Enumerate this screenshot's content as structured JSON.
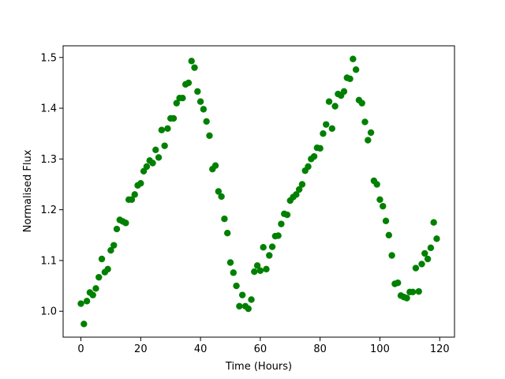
{
  "chart_data": {
    "type": "scatter",
    "x_label": "Time (Hours)",
    "y_label": "Normalised Flux",
    "series": [
      {
        "color": "#008000",
        "x": [
          0,
          1,
          2,
          3,
          4,
          5,
          6,
          7,
          8,
          9,
          10,
          11,
          12,
          13,
          14,
          15,
          16,
          17,
          18,
          19,
          20,
          21,
          22,
          23,
          24,
          25,
          26,
          27,
          28,
          29,
          30,
          31,
          32,
          33,
          34,
          35,
          36,
          37,
          38,
          39,
          40,
          41,
          42,
          43,
          44,
          45,
          46,
          47,
          48,
          49,
          50,
          51,
          52,
          53,
          54,
          55,
          56,
          57,
          58,
          59,
          60,
          61,
          62,
          63,
          64,
          65,
          66,
          67,
          68,
          69,
          70,
          71,
          72,
          73,
          74,
          75,
          76,
          77,
          78,
          79,
          80,
          81,
          82,
          83,
          84,
          85,
          86,
          87,
          88,
          89,
          90,
          91,
          92,
          93,
          94,
          95,
          96,
          97,
          98,
          99,
          100,
          101,
          102,
          103,
          104,
          105,
          106,
          107,
          108,
          109,
          110,
          111,
          112,
          113,
          114,
          115,
          116,
          117,
          118,
          119
        ],
        "values": [
          1.015,
          0.975,
          1.02,
          1.037,
          1.032,
          1.045,
          1.067,
          1.103,
          1.077,
          1.083,
          1.12,
          1.13,
          1.162,
          1.18,
          1.177,
          1.174,
          1.22,
          1.22,
          1.23,
          1.248,
          1.252,
          1.276,
          1.285,
          1.297,
          1.292,
          1.318,
          1.303,
          1.357,
          1.326,
          1.36,
          1.38,
          1.38,
          1.41,
          1.42,
          1.42,
          1.447,
          1.45,
          1.493,
          1.48,
          1.433,
          1.413,
          1.398,
          1.374,
          1.346,
          1.28,
          1.287,
          1.236,
          1.226,
          1.182,
          1.154,
          1.096,
          1.076,
          1.05,
          1.01,
          1.032,
          1.01,
          1.005,
          1.023,
          1.078,
          1.09,
          1.08,
          1.126,
          1.083,
          1.11,
          1.127,
          1.148,
          1.149,
          1.172,
          1.192,
          1.19,
          1.218,
          1.225,
          1.23,
          1.24,
          1.25,
          1.277,
          1.285,
          1.3,
          1.305,
          1.322,
          1.321,
          1.35,
          1.368,
          1.413,
          1.36,
          1.404,
          1.428,
          1.425,
          1.433,
          1.46,
          1.458,
          1.497,
          1.476,
          1.416,
          1.41,
          1.373,
          1.337,
          1.352,
          1.257,
          1.25,
          1.22,
          1.207,
          1.178,
          1.15,
          1.11,
          1.054,
          1.056,
          1.031,
          1.028,
          1.026,
          1.038,
          1.038,
          1.085,
          1.039,
          1.093,
          1.114,
          1.103,
          1.125,
          1.175,
          1.143
        ]
      }
    ],
    "xlim": [
      -5.95,
      124.95
    ],
    "ylim": [
      0.949,
      1.523
    ],
    "xticks": [
      0,
      20,
      40,
      60,
      80,
      100,
      120
    ],
    "yticks": [
      {
        "value": 1,
        "label": "1.0"
      },
      1.1,
      1.2,
      1.3,
      1.4,
      1.5
    ]
  }
}
